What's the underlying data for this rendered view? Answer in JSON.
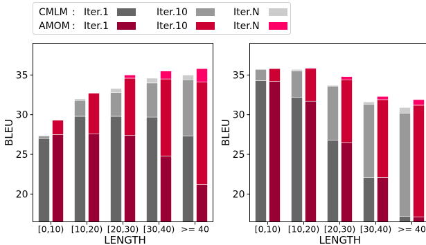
{
  "chart_data": [
    {
      "type": "bar",
      "stacked": true,
      "xlabel": "LENGTH",
      "ylabel": "BLEU",
      "ylim": [
        16.5,
        39
      ],
      "yticks": [
        20,
        25,
        30,
        35
      ],
      "categories": [
        "[0,10)",
        "[10,20)",
        "[20,30)",
        "[30,40)",
        ">= 40"
      ],
      "grid": false,
      "series": [
        {
          "name": "CMLM",
          "iter1": [
            27.0,
            29.8,
            29.8,
            29.7,
            27.3
          ],
          "iter10": [
            27.3,
            31.8,
            32.8,
            34.0,
            34.4
          ],
          "iterN": [
            27.4,
            32.0,
            33.3,
            34.6,
            35.0
          ]
        },
        {
          "name": "AMOM",
          "iter1": [
            27.5,
            27.6,
            27.4,
            24.8,
            21.2
          ],
          "iter10": [
            29.3,
            32.7,
            34.6,
            34.5,
            34.1
          ],
          "iterN": [
            29.3,
            32.7,
            35.0,
            35.5,
            35.8
          ]
        }
      ]
    },
    {
      "type": "bar",
      "stacked": true,
      "xlabel": "LENGTH",
      "ylabel": "BLEU",
      "ylim": [
        16.5,
        39
      ],
      "yticks": [
        20,
        25,
        30,
        35
      ],
      "categories": [
        "[0,10)",
        "[10,20)",
        "[20,30)",
        "[30,40)",
        ">= 40"
      ],
      "grid": false,
      "series": [
        {
          "name": "CMLM",
          "iter1": [
            34.3,
            32.2,
            26.8,
            22.1,
            17.2
          ],
          "iter10": [
            35.7,
            35.5,
            33.6,
            31.3,
            30.2
          ],
          "iterN": [
            35.7,
            35.7,
            33.7,
            31.6,
            30.9
          ]
        },
        {
          "name": "AMOM",
          "iter1": [
            34.2,
            31.7,
            26.5,
            22.1,
            17.1
          ],
          "iter10": [
            35.8,
            35.8,
            34.4,
            31.9,
            31.2
          ],
          "iterN": [
            35.8,
            35.9,
            34.8,
            32.3,
            31.9
          ]
        }
      ]
    }
  ],
  "legend": {
    "rows": [
      {
        "model": "CMLM",
        "separator": ":",
        "items": [
          {
            "label": "Iter.1",
            "color": "#666666"
          },
          {
            "label": "Iter.10",
            "color": "#999999"
          },
          {
            "label": "Iter.N",
            "color": "#cccccc"
          }
        ]
      },
      {
        "model": "AMOM",
        "separator": ":",
        "items": [
          {
            "label": "Iter.1",
            "color": "#990033"
          },
          {
            "label": "Iter.10",
            "color": "#cc0033"
          },
          {
            "label": "Iter.N",
            "color": "#ff0066"
          }
        ]
      }
    ]
  }
}
